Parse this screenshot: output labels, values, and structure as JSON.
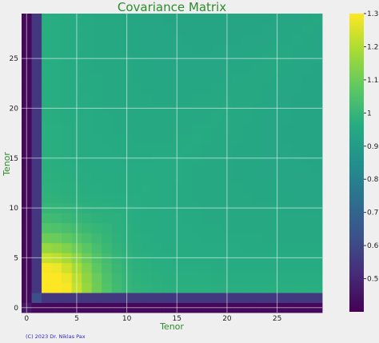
{
  "chart_data": {
    "type": "heatmap",
    "title": "Covariance Matrix",
    "xlabel": "Tenor",
    "ylabel": "Tenor",
    "x_range": [
      -0.5,
      29.5
    ],
    "y_range": [
      -0.5,
      29.5
    ],
    "x_ticks": [
      0,
      5,
      10,
      15,
      20,
      25
    ],
    "y_ticks": [
      0,
      5,
      10,
      15,
      20,
      25
    ],
    "grid": true,
    "colormap": "viridis",
    "colorbar": {
      "min": 0.4,
      "max": 1.3,
      "ticks": [
        0.5,
        0.6,
        0.7,
        0.8,
        0.9,
        1.0,
        1.1,
        1.2,
        1.3
      ]
    },
    "matrix_description_values": {
      "diagonal_peak_tenor": 2,
      "peak_value": 1.3,
      "far_tenor_plateau": 0.95,
      "tenor_0_cross_value": 0.42,
      "tenor_1_cross_value": 0.55
    }
  },
  "credit": "(C) 2023 Dr. Niklas Pax"
}
